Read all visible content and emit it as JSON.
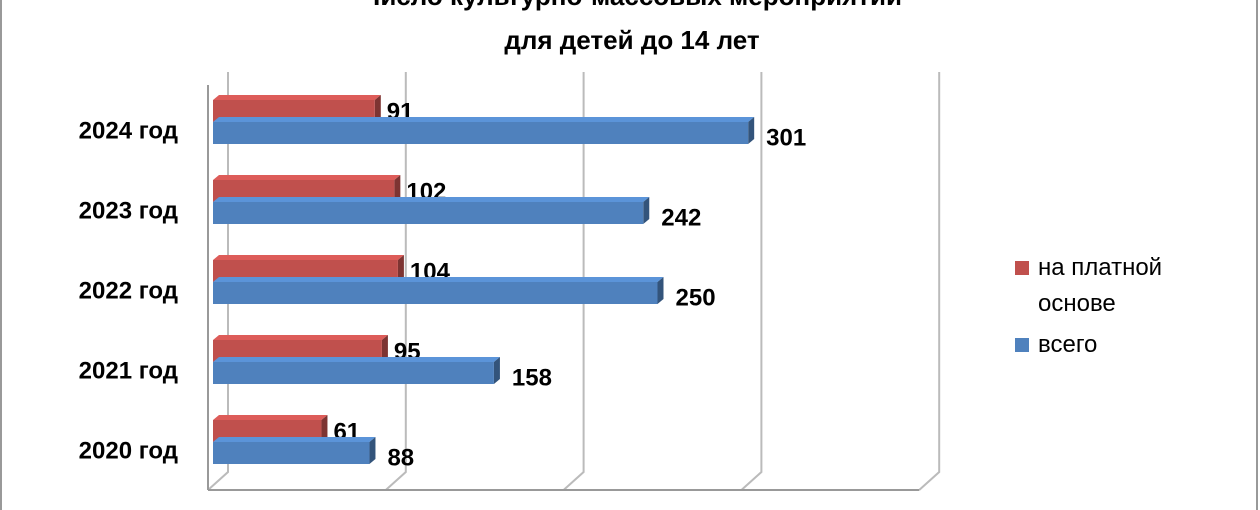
{
  "chart_data": {
    "type": "bar3d-horizontal",
    "title": [
      "Число культурно-массовых мероприятий",
      "для детей до 14 лет"
    ],
    "categories": [
      "2020 год",
      "2021 год",
      "2022 год",
      "2023 год",
      "2024 год"
    ],
    "series": [
      {
        "name": "на платной основе",
        "color": "#c0504d",
        "values": [
          61,
          95,
          104,
          102,
          91
        ]
      },
      {
        "name": "всего",
        "color": "#4f81bd",
        "values": [
          88,
          158,
          250,
          242,
          301
        ]
      }
    ],
    "xlim": [
      0,
      400
    ],
    "xticks": [
      0,
      100,
      200,
      300,
      400
    ],
    "grid": true,
    "legend": "right"
  }
}
